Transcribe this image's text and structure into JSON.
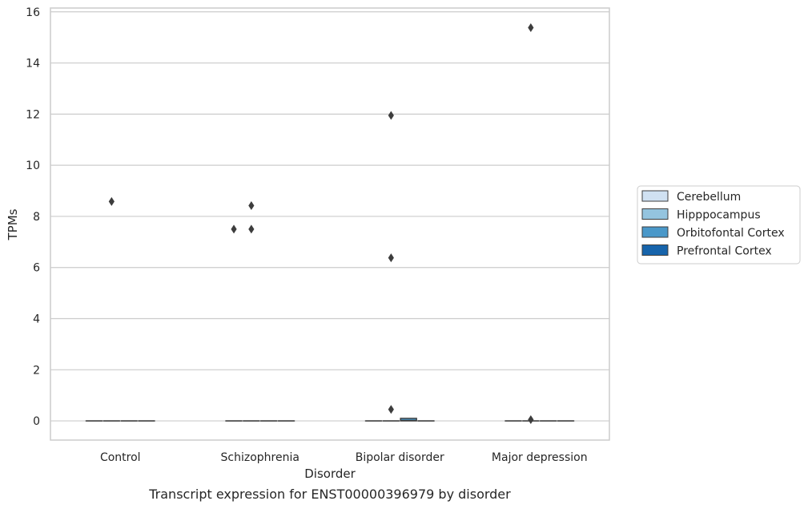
{
  "chart_data": {
    "type": "box",
    "title": "",
    "caption": "Transcript expression for ENST00000396979 by disorder",
    "xlabel": "Disorder",
    "ylabel": "TPMs",
    "ylim": [
      -0.75,
      16.15
    ],
    "yticks": [
      0,
      2,
      4,
      6,
      8,
      10,
      12,
      14,
      16
    ],
    "grid": "horizontal",
    "legend_position": "right",
    "categories": [
      "Control",
      "Schizophrenia",
      "Bipolar disorder",
      "Major depression"
    ],
    "series": [
      {
        "name": "Cerebellum",
        "color": "#d0e1f2",
        "boxes": [
          {
            "category": "Control",
            "q1": 0,
            "median": 0,
            "q3": 0,
            "whisker_low": 0,
            "whisker_high": 0,
            "outliers": []
          },
          {
            "category": "Schizophrenia",
            "q1": 0,
            "median": 0,
            "q3": 0,
            "whisker_low": 0,
            "whisker_high": 0,
            "outliers": [
              7.5
            ]
          },
          {
            "category": "Bipolar disorder",
            "q1": 0,
            "median": 0,
            "q3": 0,
            "whisker_low": 0,
            "whisker_high": 0,
            "outliers": []
          },
          {
            "category": "Major depression",
            "q1": 0,
            "median": 0,
            "q3": 0,
            "whisker_low": 0,
            "whisker_high": 0,
            "outliers": []
          }
        ]
      },
      {
        "name": "Hipppocampus",
        "color": "#94c4df",
        "boxes": [
          {
            "category": "Control",
            "q1": 0,
            "median": 0,
            "q3": 0,
            "whisker_low": 0,
            "whisker_high": 0,
            "outliers": [
              8.58
            ]
          },
          {
            "category": "Schizophrenia",
            "q1": 0,
            "median": 0,
            "q3": 0,
            "whisker_low": 0,
            "whisker_high": 0,
            "outliers": [
              8.42,
              7.5
            ]
          },
          {
            "category": "Bipolar disorder",
            "q1": 0,
            "median": 0,
            "q3": 0,
            "whisker_low": 0,
            "whisker_high": 0,
            "outliers": [
              11.95,
              6.38,
              0.45
            ]
          },
          {
            "category": "Major depression",
            "q1": 0,
            "median": 0,
            "q3": 0,
            "whisker_low": 0,
            "whisker_high": 0,
            "outliers": [
              15.38,
              0.05
            ]
          }
        ]
      },
      {
        "name": "Orbitofontal Cortex",
        "color": "#4a98c9",
        "boxes": [
          {
            "category": "Control",
            "q1": 0,
            "median": 0,
            "q3": 0,
            "whisker_low": 0,
            "whisker_high": 0,
            "outliers": []
          },
          {
            "category": "Schizophrenia",
            "q1": 0,
            "median": 0,
            "q3": 0,
            "whisker_low": 0,
            "whisker_high": 0,
            "outliers": []
          },
          {
            "category": "Bipolar disorder",
            "q1": 0,
            "median": 0.02,
            "q3": 0.1,
            "whisker_low": 0,
            "whisker_high": 0.1,
            "outliers": []
          },
          {
            "category": "Major depression",
            "q1": 0,
            "median": 0,
            "q3": 0,
            "whisker_low": 0,
            "whisker_high": 0,
            "outliers": []
          }
        ]
      },
      {
        "name": "Prefrontal Cortex",
        "color": "#1764ab",
        "boxes": [
          {
            "category": "Control",
            "q1": 0,
            "median": 0,
            "q3": 0,
            "whisker_low": 0,
            "whisker_high": 0,
            "outliers": []
          },
          {
            "category": "Schizophrenia",
            "q1": 0,
            "median": 0,
            "q3": 0,
            "whisker_low": 0,
            "whisker_high": 0,
            "outliers": []
          },
          {
            "category": "Bipolar disorder",
            "q1": 0,
            "median": 0,
            "q3": 0,
            "whisker_low": 0,
            "whisker_high": 0,
            "outliers": []
          },
          {
            "category": "Major depression",
            "q1": 0,
            "median": 0,
            "q3": 0,
            "whisker_low": 0,
            "whisker_high": 0,
            "outliers": []
          }
        ]
      }
    ]
  }
}
